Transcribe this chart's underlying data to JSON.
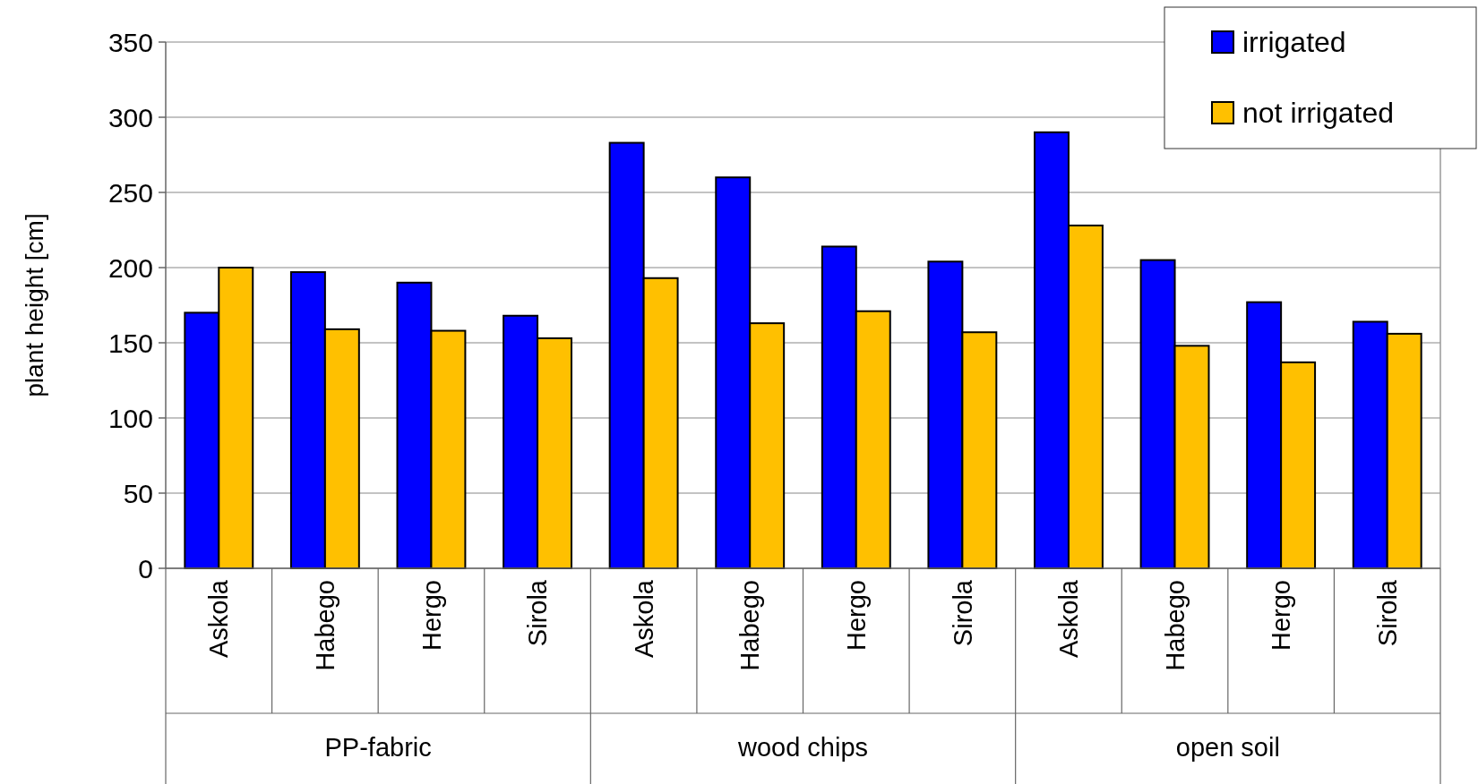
{
  "chart_data": {
    "type": "bar",
    "ylabel": "plant height  [cm]",
    "categories": [
      "Askola",
      "Habego",
      "Hergo",
      "Sirola",
      "Askola",
      "Habego",
      "Hergo",
      "Sirola",
      "Askola",
      "Habego",
      "Hergo",
      "Sirola"
    ],
    "annotations": [
      "PP-fabric",
      "wood chips",
      "open soil"
    ],
    "series": [
      {
        "name": "irrigated",
        "color": "#0000ff",
        "values": [
          170,
          197,
          190,
          168,
          283,
          260,
          214,
          204,
          290,
          205,
          177,
          164
        ]
      },
      {
        "name": "not irrigated",
        "color": "#ffc000",
        "values": [
          200,
          159,
          158,
          153,
          193,
          163,
          171,
          157,
          228,
          148,
          137,
          156
        ]
      }
    ],
    "ylim": [
      0,
      350
    ],
    "yticks": [
      0,
      50,
      100,
      150,
      200,
      250,
      300,
      350
    ],
    "grid": "y",
    "legend": "top right"
  }
}
